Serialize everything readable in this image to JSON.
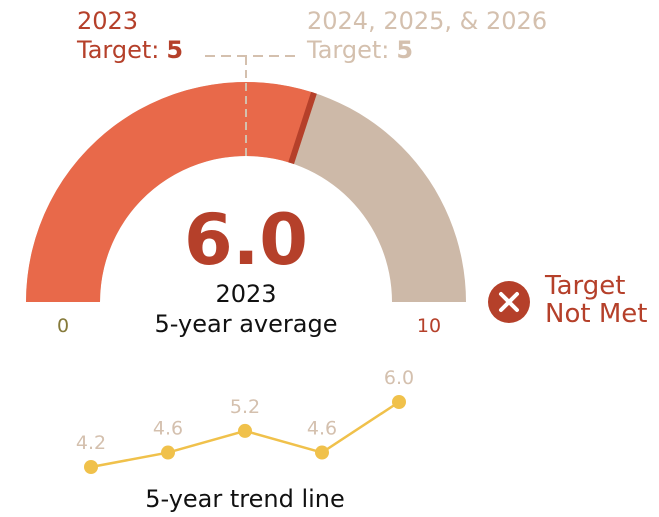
{
  "chart_data": [
    {
      "type": "gauge",
      "value": 6.0,
      "value_label": "6.0",
      "min": 0,
      "max": 10,
      "ticks": [
        0,
        10
      ],
      "year": "2023",
      "caption": "5-year average",
      "colors": {
        "fill": "#e8694a",
        "rest": "#cdb9a8",
        "marker": "#b5402a"
      },
      "targets": [
        {
          "name": "2023",
          "label": "Target:",
          "value": 5,
          "color": "#b5402a"
        },
        {
          "name": "2024, 2025, & 2026",
          "label": "Target:",
          "value": 5,
          "color": "#d4c0ae"
        }
      ],
      "status": [
        "Target",
        "Not Met"
      ],
      "status_color": "#b5402a"
    },
    {
      "type": "line",
      "title": "5-year trend line",
      "values": [
        4.2,
        4.6,
        5.2,
        4.6,
        6.0
      ],
      "value_labels": [
        "4.2",
        "4.6",
        "5.2",
        "4.6",
        "6.0"
      ],
      "color": "#f0c14b",
      "label_color": "#d4c0ae"
    }
  ]
}
